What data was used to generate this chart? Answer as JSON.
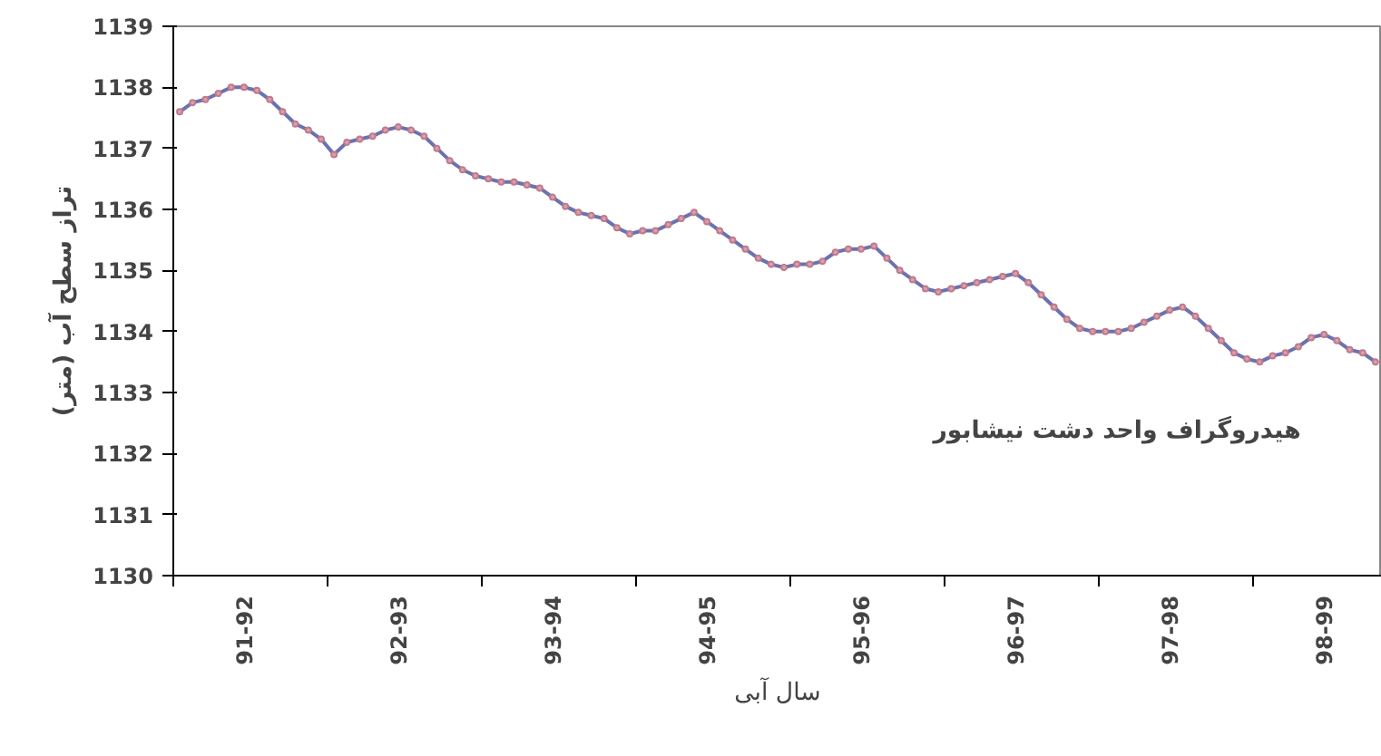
{
  "chart_data": {
    "type": "line",
    "title": "هیدروگراف واحد دشت نیشابور",
    "xlabel": "سال آبی",
    "ylabel": "تراز سطح آب (متر)",
    "categories": [
      null,
      null,
      null,
      null,
      null,
      "91-92",
      null,
      null,
      null,
      null,
      null,
      null,
      null,
      null,
      null,
      null,
      null,
      "92-93",
      null,
      null,
      null,
      null,
      null,
      null,
      null,
      null,
      null,
      null,
      null,
      "93-94",
      null,
      null,
      null,
      null,
      null,
      null,
      null,
      null,
      null,
      null,
      null,
      "94-95",
      null,
      null,
      null,
      null,
      null,
      null,
      null,
      null,
      null,
      null,
      null,
      "95-96",
      null,
      null,
      null,
      null,
      null,
      null,
      null,
      null,
      null,
      null,
      null,
      "96-97",
      null,
      null,
      null,
      null,
      null,
      null,
      null,
      null,
      null,
      null,
      null,
      "97-98",
      null,
      null,
      null,
      null,
      null,
      null,
      null,
      null,
      null,
      null,
      null,
      "98-99",
      null,
      null,
      null,
      null
    ],
    "series": [
      {
        "color": "#6a72b0",
        "values": [
          1137.6,
          1137.75,
          1137.8,
          1137.9,
          1138.0,
          1138.0,
          1137.95,
          1137.8,
          1137.6,
          1137.4,
          1137.3,
          1137.15,
          1136.9,
          1137.1,
          1137.15,
          1137.2,
          1137.3,
          1137.35,
          1137.3,
          1137.2,
          1137.0,
          1136.8,
          1136.65,
          1136.55,
          1136.5,
          1136.45,
          1136.45,
          1136.4,
          1136.35,
          1136.2,
          1136.05,
          1135.95,
          1135.9,
          1135.85,
          1135.7,
          1135.6,
          1135.65,
          1135.65,
          1135.75,
          1135.85,
          1135.95,
          1135.8,
          1135.65,
          1135.5,
          1135.35,
          1135.2,
          1135.1,
          1135.05,
          1135.1,
          1135.1,
          1135.15,
          1135.3,
          1135.35,
          1135.35,
          1135.4,
          1135.2,
          1135.0,
          1134.85,
          1134.7,
          1134.65,
          1134.7,
          1134.75,
          1134.8,
          1134.85,
          1134.9,
          1134.95,
          1134.8,
          1134.6,
          1134.4,
          1134.2,
          1134.05,
          1134.0,
          1134.0,
          1134.0,
          1134.05,
          1134.15,
          1134.25,
          1134.35,
          1134.4,
          1134.25,
          1134.05,
          1133.85,
          1133.65,
          1133.55,
          1133.5,
          1133.6,
          1133.65,
          1133.75,
          1133.9,
          1133.95,
          1133.85,
          1133.7,
          1133.65,
          1133.5
        ]
      }
    ],
    "ylim": [
      1130,
      1139
    ],
    "yticks": [
      1130,
      1131,
      1132,
      1133,
      1134,
      1135,
      1136,
      1137,
      1138,
      1139
    ],
    "grid": false,
    "marker": "circle",
    "line_style": "solid"
  }
}
